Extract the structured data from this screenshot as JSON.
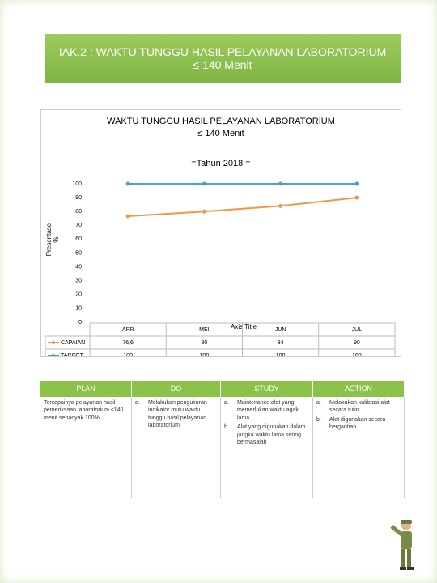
{
  "header": {
    "title": [
      "IAK.2 : WAKTU TUNGGU HASIL PELAYANAN LABORATORIUM",
      "≤ 140 Menit"
    ]
  },
  "chart_data": {
    "type": "line",
    "title": [
      "WAKTU TUNGGU HASIL PELAYANAN LABORATORIUM",
      "≤ 140 Menit"
    ],
    "subtitle": "=Tahun 2018 =",
    "y_label": [
      "Presentase",
      "%"
    ],
    "x_label": "Axis Title",
    "categories": [
      "APR",
      "MEI",
      "JUN",
      "JUL"
    ],
    "series": [
      {
        "name": "CAPAIAN",
        "color": "#f0974a",
        "values": [
          76.6,
          80,
          84,
          90
        ],
        "value_labels": [
          "76,6",
          "80",
          "84",
          "90"
        ]
      },
      {
        "name": "TARGET",
        "color": "#4aa3bf",
        "values": [
          100,
          100,
          100,
          100
        ]
      }
    ],
    "ylim": [
      0,
      100
    ],
    "yticks": [
      0,
      10,
      20,
      30,
      40,
      50,
      60,
      70,
      80,
      90,
      100
    ],
    "grid": false,
    "legend": "data-table"
  },
  "pdca": {
    "headers": [
      "PLAN",
      "DO",
      "STUDY",
      "ACTION"
    ],
    "plan": "Tercapainya pelayanan hasil pemeriksaan laboratorium ≤140 menit sebanyak 100%",
    "do": [
      {
        "marker": "a.",
        "text": "Melakukan pengukuran indikator mutu waktu tunggu hasil pelayanan laboratorium."
      }
    ],
    "study": [
      {
        "marker": "a.",
        "text": "Maintenance alat yang memerlukan waktu agak lama"
      },
      {
        "marker": "b.",
        "text": "Alat yang digunakan dalam jangka waktu lama sering bermasalah"
      }
    ],
    "action": [
      {
        "marker": "a.",
        "text": "Melakukan kalibrasi alat secara rutin"
      },
      {
        "marker": "b.",
        "text": "Alat digunakan secara bergantian"
      }
    ]
  }
}
